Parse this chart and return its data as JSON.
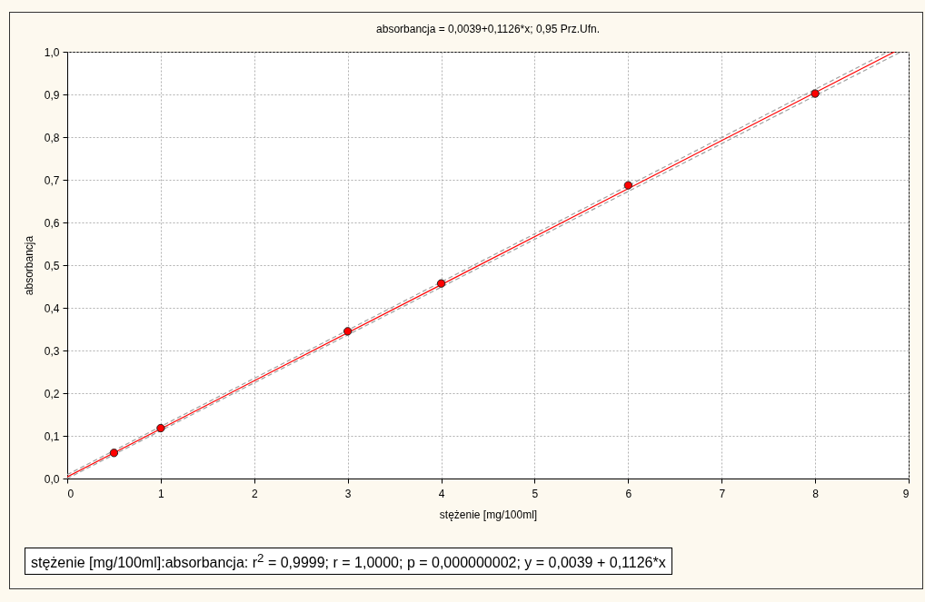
{
  "chart_data": {
    "type": "scatter",
    "title": "absorbancja = 0,0039+0,1126*x; 0,95 Prz.Ufn.",
    "xlabel": "stężenie [mg/100ml]",
    "ylabel": "absorbancja",
    "x": [
      0.5,
      1,
      3,
      4,
      6,
      8
    ],
    "series": [
      {
        "color": "#ff0000",
        "marker": "circle",
        "values": [
          0.06,
          0.118,
          0.345,
          0.457,
          0.687,
          0.902
        ]
      },
      {
        "type": "line",
        "color": "#ff0000",
        "line_style": "solid",
        "marker": "none",
        "x": [
          0,
          8.85
        ],
        "values": [
          0.004,
          1.0
        ]
      },
      {
        "type": "line",
        "color": "#a0a0a0",
        "line_style": "dashed",
        "marker": "none",
        "x": [
          0,
          8.78
        ],
        "values": [
          0.009,
          1.0
        ]
      },
      {
        "type": "line",
        "color": "#a0a0a0",
        "line_style": "dashed",
        "marker": "none",
        "x": [
          0,
          8.92
        ],
        "values": [
          0.0,
          1.0
        ]
      }
    ],
    "xlim": [
      0,
      9
    ],
    "xticks": [
      0,
      1,
      2,
      3,
      4,
      5,
      6,
      7,
      8,
      9
    ],
    "ylim": [
      0,
      1
    ],
    "yticks": [
      {
        "value": 0,
        "label": "0,0"
      },
      {
        "value": 0.1,
        "label": "0,1"
      },
      {
        "value": 0.2,
        "label": "0,2"
      },
      {
        "value": 0.3,
        "label": "0,3"
      },
      {
        "value": 0.4,
        "label": "0,4"
      },
      {
        "value": 0.5,
        "label": "0,5"
      },
      {
        "value": 0.6,
        "label": "0,6"
      },
      {
        "value": 0.7,
        "label": "0,7"
      },
      {
        "value": 0.8,
        "label": "0,8"
      },
      {
        "value": 0.9,
        "label": "0,9"
      },
      {
        "value": 1,
        "label": "1,0"
      }
    ],
    "grid": true,
    "annotations": [
      "stężenie [mg/100ml]:absorbancja:  r$^{2}$ = 0,9999;  r = 1,0000; p = 0,000000002;  y = 0,0039 + 0,1126*x"
    ]
  }
}
